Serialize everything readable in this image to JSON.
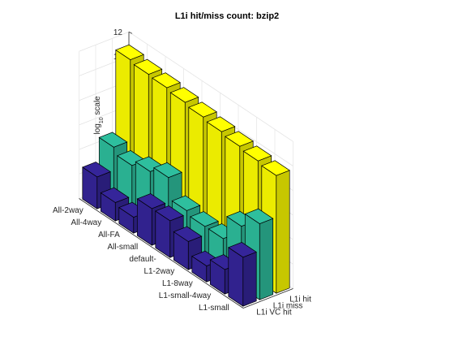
{
  "chart_data": {
    "type": "bar",
    "style": "3d-grouped",
    "title": "L1i hit/miss count: bzip2",
    "ylabel": "log10 scale",
    "ylabel_main": "log",
    "ylabel_sub": "10",
    "ylabel_rest": " scale",
    "zlim": [
      0,
      12
    ],
    "zticks": [
      "0",
      "2",
      "4",
      "6",
      "8",
      "10",
      "12"
    ],
    "grid": true,
    "categories": [
      "All-2way",
      "All-4way",
      "All-FA",
      "All-small",
      "default-",
      "L1-2way",
      "L1-8way",
      "L1-small-4way",
      "L1-small"
    ],
    "series": [
      {
        "name": "L1i hit",
        "color": "#ffff00",
        "values": [
          11.1,
          10.9,
          10.8,
          10.6,
          10.4,
          10.2,
          10.0,
          9.8,
          9.6
        ]
      },
      {
        "name": "L1i miss",
        "color": "#2ebf9e",
        "values": [
          4.5,
          4.0,
          4.5,
          5.0,
          3.3,
          3.0,
          3.0,
          5.0,
          6.2
        ]
      },
      {
        "name": "L1i VC hit",
        "color": "#35259a",
        "values": [
          2.6,
          1.5,
          1.3,
          3.0,
          3.0,
          2.3,
          1.3,
          2.0,
          4.0
        ]
      }
    ]
  }
}
